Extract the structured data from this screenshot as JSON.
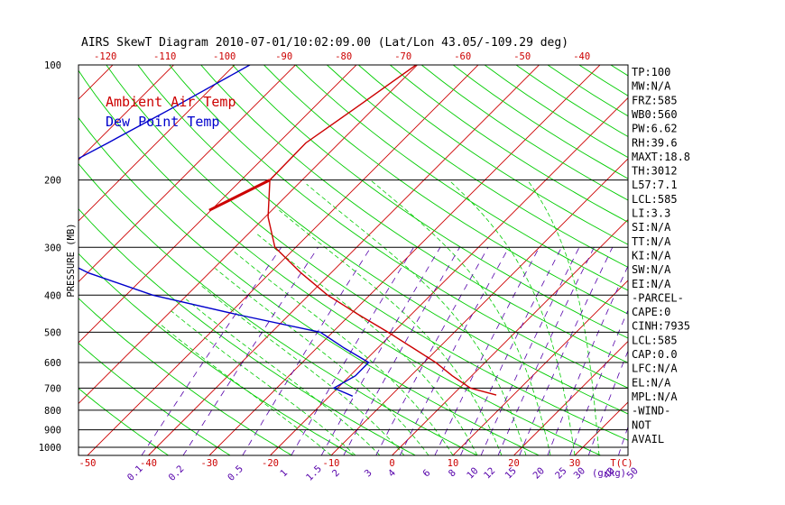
{
  "title": "AIRS SkewT Diagram 2010-07-01/10:02:09.00 (Lat/Lon 43.05/-109.29 deg)",
  "colors": {
    "frame": "#000000",
    "isotherm": "#cc0000",
    "dry_adiabat": "#00cc00",
    "moist_adiabat": "#00cc00",
    "mixing_ratio": "#5500aa",
    "axis_red_text": "#cc0000",
    "axis_purple_text": "#5500aa",
    "temp_line": "#cc0000",
    "dewpoint_line": "#0000cc"
  },
  "chart_data": {
    "type": "line",
    "ylabel": "PRESSURE (MB)",
    "top_temp_ticks": [
      "-120",
      "-110",
      "-100",
      "-90",
      "-80",
      "-70",
      "-60",
      "-50",
      "-40"
    ],
    "top_temp_values": [
      -120,
      -110,
      -100,
      -90,
      -80,
      -70,
      -60,
      -50,
      -40
    ],
    "bottom_temp_ticks": [
      "-50",
      "-40",
      "-30",
      "-20",
      "-10",
      "0",
      "10",
      "20",
      "30"
    ],
    "bottom_temp_values": [
      -50,
      -40,
      -30,
      -20,
      -10,
      0,
      10,
      20,
      30
    ],
    "bottom_temp_unit": "T(C)",
    "pressure_ticks": [
      "100",
      "200",
      "300",
      "400",
      "500",
      "600",
      "700",
      "800",
      "900",
      "1000"
    ],
    "pressure_values": [
      100,
      200,
      300,
      400,
      500,
      600,
      700,
      800,
      900,
      1000
    ],
    "mixing_ratio_ticks": [
      "0.1",
      "0.2",
      "0.5",
      "1",
      "1.5",
      "2",
      "3",
      "4",
      "6",
      "8",
      "10",
      "12",
      "15",
      "20",
      "25",
      "30",
      "40",
      "50"
    ],
    "mixing_ratio_values": [
      0.1,
      0.2,
      0.5,
      1,
      1.5,
      2,
      3,
      4,
      6,
      8,
      10,
      12,
      15,
      20,
      25,
      30,
      40,
      50
    ],
    "mixing_ratio_unit": "(g/kg)",
    "series": [
      {
        "name": "Ambient Air Temp",
        "color": "#cc0000",
        "points": [
          {
            "p": 100,
            "t": -60.2
          },
          {
            "p": 130,
            "t": -63.1
          },
          {
            "p": 160,
            "t": -65.5
          },
          {
            "p": 200,
            "t": -65.3
          },
          {
            "p": 250,
            "t": -59.5
          },
          {
            "p": 300,
            "t": -53.4
          },
          {
            "p": 350,
            "t": -44.9
          },
          {
            "p": 400,
            "t": -36.9
          },
          {
            "p": 450,
            "t": -28.6
          },
          {
            "p": 500,
            "t": -20.9
          },
          {
            "p": 550,
            "t": -14.2
          },
          {
            "p": 600,
            "t": -8.1
          },
          {
            "p": 650,
            "t": -3.2
          },
          {
            "p": 700,
            "t": 1.8
          },
          {
            "p": 730,
            "t": 7.2
          }
        ]
      },
      {
        "name": "Dew Point Temp",
        "color": "#0000cc",
        "points": [
          {
            "p": 100,
            "t": -87.5
          },
          {
            "p": 130,
            "t": -93.2
          },
          {
            "p": 160,
            "t": -98.0
          },
          {
            "p": 200,
            "t": -103.4
          },
          {
            "p": 250,
            "t": -101.2
          },
          {
            "p": 300,
            "t": -92.5
          },
          {
            "p": 350,
            "t": -79.8
          },
          {
            "p": 400,
            "t": -65.6
          },
          {
            "p": 450,
            "t": -48.4
          },
          {
            "p": 500,
            "t": -32.0
          },
          {
            "p": 550,
            "t": -25.5
          },
          {
            "p": 600,
            "t": -19.1
          },
          {
            "p": 650,
            "t": -19.1
          },
          {
            "p": 700,
            "t": -20.6
          },
          {
            "p": 735,
            "t": -16.2
          }
        ]
      }
    ]
  },
  "indices": [
    "TP:100",
    "MW:N/A",
    "FRZ:585",
    "WB0:560",
    "PW:6.62",
    "RH:39.6",
    "MAXT:18.8",
    "TH:3012",
    "L57:7.1",
    "LCL:585",
    "LI:3.3",
    "SI:N/A",
    "TT:N/A",
    "KI:N/A",
    "SW:N/A",
    "EI:N/A",
    "-PARCEL-",
    "CAPE:0",
    "CINH:7935",
    "LCL:585",
    "CAP:0.0",
    "LFC:N/A",
    "EL:N/A",
    "MPL:N/A",
    "-WIND-",
    "NOT",
    "AVAIL"
  ]
}
